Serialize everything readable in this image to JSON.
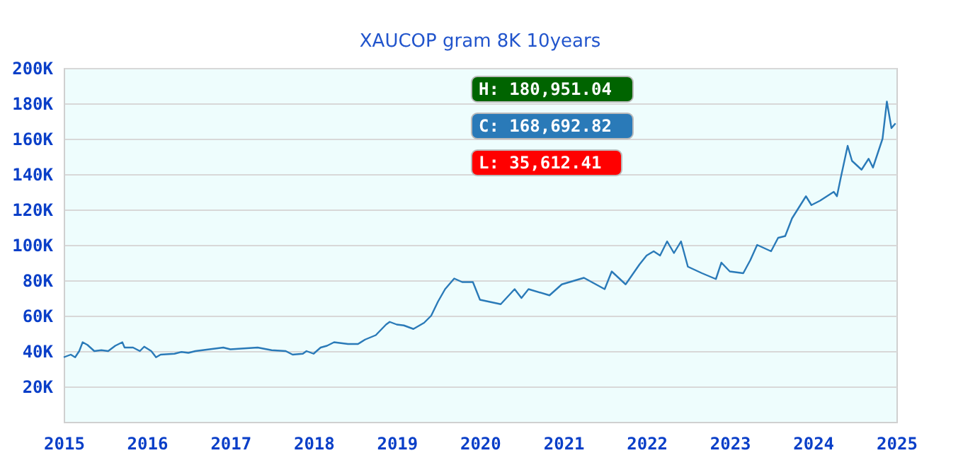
{
  "chart_data": {
    "type": "line",
    "title": "XAUCOP gram 8K 10years",
    "annotations": [
      "H: 180,951.04",
      "C: 168,692.82",
      "L: 35,612.41"
    ],
    "xlim": [
      "2015-01-01",
      "2025-01-01"
    ],
    "xticks": [
      "2015",
      "2016",
      "2017",
      "2018",
      "2019",
      "2020",
      "2021",
      "2022",
      "2023",
      "2024",
      "2025"
    ],
    "ylim": [
      0,
      200000
    ],
    "yticks": [
      {
        "value": 20000,
        "label": "20K"
      },
      {
        "value": 40000,
        "label": "40K"
      },
      {
        "value": 60000,
        "label": "60K"
      },
      {
        "value": 80000,
        "label": "80K"
      },
      {
        "value": 100000,
        "label": "100K"
      },
      {
        "value": 120000,
        "label": "120K"
      },
      {
        "value": 140000,
        "label": "140K"
      },
      {
        "value": 160000,
        "label": "160K"
      },
      {
        "value": 180000,
        "label": "180K"
      },
      {
        "value": 200000,
        "label": "200K"
      }
    ],
    "grid": "y",
    "marker": "none",
    "line_style": "solid",
    "series": [
      {
        "color": "#2a7ab8",
        "x": [
          "2015-01-01",
          "2015-02-01",
          "2015-02-20",
          "2015-03-10",
          "2015-03-25",
          "2015-04-15",
          "2015-05-15",
          "2015-06-15",
          "2015-07-15",
          "2015-08-15",
          "2015-09-15",
          "2015-09-25",
          "2015-11-01",
          "2015-12-01",
          "2015-12-20",
          "2016-01-20",
          "2016-02-10",
          "2016-03-01",
          "2016-05-01",
          "2016-06-01",
          "2016-07-01",
          "2016-08-01",
          "2016-10-01",
          "2016-12-01",
          "2017-01-01",
          "2017-03-01",
          "2017-05-01",
          "2017-07-01",
          "2017-09-01",
          "2017-10-01",
          "2017-11-15",
          "2017-12-01",
          "2018-01-01",
          "2018-02-01",
          "2018-03-01",
          "2018-04-01",
          "2018-06-01",
          "2018-07-15",
          "2018-08-15",
          "2018-10-01",
          "2018-11-15",
          "2018-12-01",
          "2019-01-01",
          "2019-02-01",
          "2019-03-15",
          "2019-05-01",
          "2019-06-01",
          "2019-07-01",
          "2019-08-01",
          "2019-09-10",
          "2019-10-15",
          "2019-12-01",
          "2020-01-01",
          "2020-04-01",
          "2020-06-01",
          "2020-07-01",
          "2020-08-01",
          "2020-11-01",
          "2020-12-25",
          "2021-04-01",
          "2021-07-01",
          "2021-08-01",
          "2021-10-01",
          "2021-12-01",
          "2022-01-01",
          "2022-02-01",
          "2022-03-01",
          "2022-04-01",
          "2022-05-01",
          "2022-06-01",
          "2022-07-01",
          "2022-09-01",
          "2022-11-01",
          "2022-11-25",
          "2023-01-01",
          "2023-03-01",
          "2023-04-01",
          "2023-05-01",
          "2023-07-01",
          "2023-08-01",
          "2023-09-01",
          "2023-10-01",
          "2023-12-01",
          "2023-12-25",
          "2024-02-01",
          "2024-04-01",
          "2024-04-15",
          "2024-05-01",
          "2024-06-01",
          "2024-06-20",
          "2024-08-01",
          "2024-09-01",
          "2024-09-20",
          "2024-11-01",
          "2024-11-20",
          "2024-12-10",
          "2024-12-28"
        ],
        "values": [
          36500,
          38000,
          36500,
          40000,
          45000,
          43500,
          40000,
          40500,
          40000,
          43000,
          45000,
          42000,
          42000,
          40000,
          42500,
          40000,
          36500,
          38000,
          38500,
          39500,
          39000,
          40000,
          41000,
          42000,
          41000,
          41500,
          42000,
          40500,
          40000,
          38000,
          38500,
          40000,
          38500,
          42000,
          43000,
          45000,
          44000,
          44000,
          46500,
          49000,
          55000,
          56500,
          55000,
          54500,
          52500,
          56000,
          60000,
          68000,
          75000,
          81000,
          79000,
          79000,
          69000,
          66500,
          75000,
          70000,
          75000,
          71500,
          77700,
          81400,
          75000,
          85000,
          77700,
          89000,
          94000,
          96400,
          94000,
          102000,
          95400,
          102000,
          87700,
          84000,
          80700,
          90000,
          85000,
          84000,
          91400,
          100000,
          96400,
          104000,
          105000,
          115000,
          127500,
          122500,
          125000,
          130000,
          127500,
          137500,
          156000,
          147500,
          142500,
          148700,
          143700,
          160000,
          181000,
          166000,
          168700
        ]
      }
    ]
  }
}
